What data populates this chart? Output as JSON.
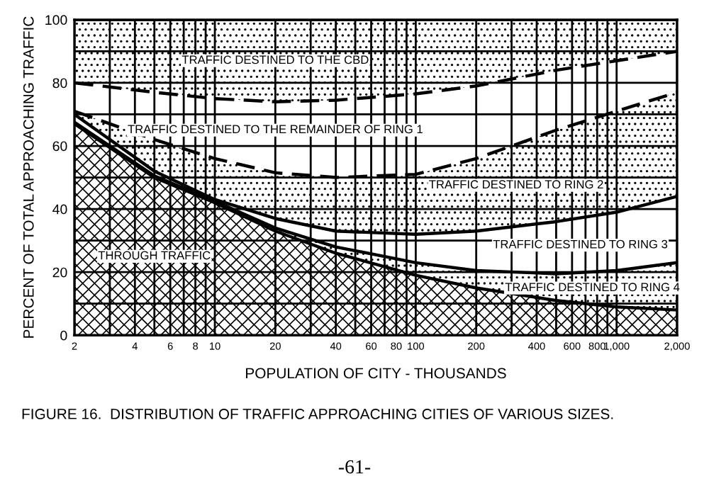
{
  "chart_data": {
    "type": "area",
    "stacked": true,
    "log": "x",
    "xlabel": "POPULATION OF CITY - THOUSANDS",
    "ylabel": "PERCENT OF TOTAL APPROACHING TRAFFIC",
    "x": [
      2,
      5,
      10,
      20,
      40,
      100,
      200,
      500,
      1000,
      2000
    ],
    "series": [
      {
        "name": "THROUGH TRAFFIC",
        "color": "#ffffff",
        "values": [
          67,
          50,
          42,
          33,
          26,
          19,
          15,
          11,
          9,
          8
        ]
      },
      {
        "name": "TRAFFIC DESTINED TO RING 4",
        "color": "#ffffff",
        "values": [
          0.5,
          0.5,
          0.5,
          1,
          2,
          4,
          5.5,
          8.5,
          11.5,
          15
        ]
      },
      {
        "name": "TRAFFIC DESTINED TO RING 3",
        "color": "#ffffff",
        "values": [
          2.5,
          1.5,
          0.5,
          3,
          5,
          9,
          12.5,
          16.5,
          18.5,
          21
        ]
      },
      {
        "name": "TRAFFIC DESTINED TO RING 2",
        "color": "#ffffff",
        "line_style": "dashed",
        "values": [
          1,
          10,
          13,
          14.5,
          17,
          19,
          23,
          29,
          32,
          33
        ]
      },
      {
        "name": "TRAFFIC DESTINED TO THE REMAINDER OF RING 1",
        "color": "#ffffff",
        "line_style": "dashed",
        "values": [
          9,
          15,
          19,
          22.5,
          24.5,
          25.5,
          23,
          19,
          16,
          13
        ]
      },
      {
        "name": "TRAFFIC DESTINED TO THE CBD",
        "color": "#ffffff",
        "values": [
          20,
          23,
          25,
          26,
          25.5,
          23.5,
          21,
          16,
          13,
          10
        ]
      }
    ],
    "xlim": [
      2,
      2000
    ],
    "ylim": [
      0,
      100
    ],
    "xticks": [
      2,
      {
        "value": 3,
        "label": null
      },
      4,
      {
        "value": 5,
        "label": null
      },
      6,
      {
        "value": 7,
        "label": null
      },
      8,
      {
        "value": 9,
        "label": null
      },
      10,
      20,
      {
        "value": 30,
        "label": null
      },
      40,
      {
        "value": 50,
        "label": null
      },
      60,
      {
        "value": 70,
        "label": null
      },
      80,
      {
        "value": 90,
        "label": null
      },
      100,
      200,
      {
        "value": 300,
        "label": null
      },
      400,
      {
        "value": 500,
        "label": null
      },
      600,
      {
        "value": 700,
        "label": null
      },
      800,
      {
        "value": 900,
        "label": null
      },
      {
        "value": 1000,
        "label": "1,000"
      },
      {
        "value": 2000,
        "label": "2,000"
      }
    ],
    "yticks": [
      0,
      {
        "value": 10,
        "label": null
      },
      20,
      {
        "value": 30,
        "label": null
      },
      40,
      {
        "value": 50,
        "label": null
      },
      60,
      {
        "value": 70,
        "label": null
      },
      80,
      {
        "value": 90,
        "label": null
      },
      100
    ],
    "grid": true,
    "legend": false,
    "annotations": [
      "FIGURE 16.  DISTRIBUTION OF TRAFFIC APPROACHING CITIES OF VARIOUS SIZES.",
      "-61-"
    ]
  }
}
